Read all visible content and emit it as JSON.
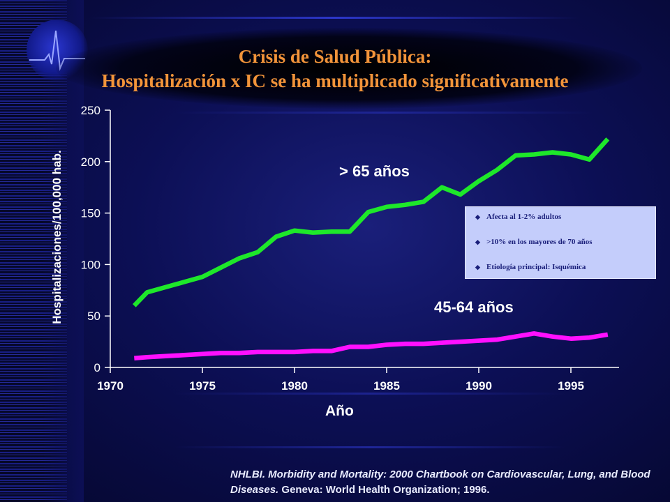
{
  "title_line1": "Crisis de Salud Pública:",
  "title_line2": "Hospitalización x IC se ha multiplicado significativamente",
  "infobox": {
    "items": [
      "Afecta al 1-2% adultos",
      ">10% en los mayores de 70 años",
      "Etiología principal: Isquémica"
    ]
  },
  "citation": {
    "italic_part": "NHLBI. Morbidity and Mortality: 2000 Chartbook on Cardiovascular, Lung, and Blood Diseases.",
    "plain_part": "Geneva: World Health Organization; 1996."
  },
  "chart_data": {
    "type": "line",
    "title": "",
    "xlabel": "Año",
    "ylabel": "Hospitalizaciones/100,000 hab.",
    "xlim": [
      1970,
      1997.5
    ],
    "ylim": [
      0,
      250
    ],
    "x_ticks": [
      1970,
      1975,
      1980,
      1985,
      1990,
      1995
    ],
    "y_ticks": [
      0,
      50,
      100,
      150,
      200,
      250
    ],
    "grid": false,
    "colors": {
      "> 65 años": "#1ee82a",
      "45-64 años": "#ff10ff"
    },
    "series": [
      {
        "name": "> 65 años",
        "x": [
          1971.3,
          1972,
          1973,
          1974,
          1975,
          1976,
          1977,
          1978,
          1979,
          1980,
          1981,
          1982,
          1983,
          1984,
          1985,
          1986,
          1987,
          1988,
          1989,
          1990,
          1991,
          1992,
          1993,
          1994,
          1995,
          1996,
          1997
        ],
        "values": [
          60,
          73,
          78,
          83,
          88,
          97,
          106,
          112,
          127,
          133,
          131,
          132,
          132,
          151,
          156,
          158,
          161,
          175,
          168,
          181,
          192,
          206,
          207,
          209,
          207,
          202,
          222
        ]
      },
      {
        "name": "45-64 años",
        "x": [
          1971.3,
          1972,
          1973,
          1974,
          1975,
          1976,
          1977,
          1978,
          1979,
          1980,
          1981,
          1982,
          1983,
          1984,
          1985,
          1986,
          1987,
          1988,
          1989,
          1990,
          1991,
          1992,
          1993,
          1994,
          1995,
          1996,
          1997
        ],
        "values": [
          9,
          10,
          11,
          12,
          13,
          14,
          14,
          15,
          15,
          15,
          16,
          16,
          20,
          20,
          22,
          23,
          23,
          24,
          25,
          26,
          27,
          30,
          33,
          30,
          28,
          29,
          32
        ]
      }
    ]
  }
}
